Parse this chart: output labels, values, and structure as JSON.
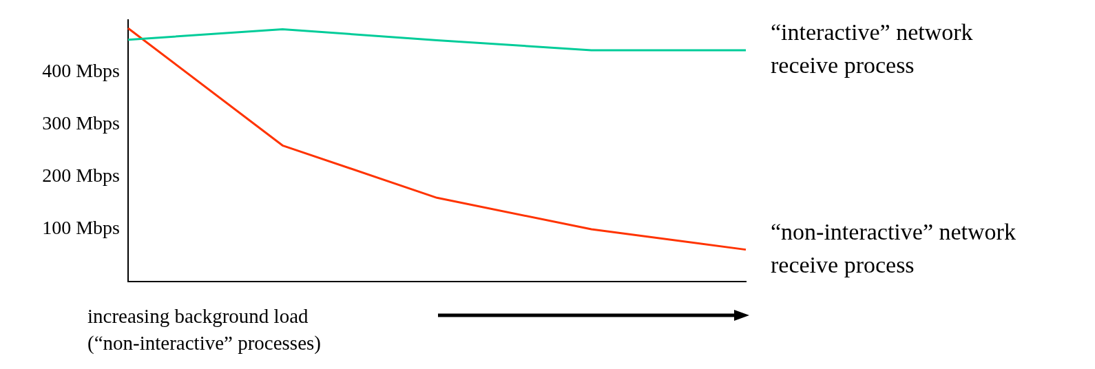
{
  "chart_data": {
    "type": "line",
    "xlabel": "increasing background load\n(“non-interactive” processes)",
    "categories": [
      null,
      null,
      null,
      null,
      null
    ],
    "series": [
      {
        "name": "“interactive” network receive process",
        "color": "#00cc99",
        "values": [
          462,
          482,
          461,
          442,
          442
        ]
      },
      {
        "name": "“non-interactive” network receive process",
        "color": "#ff3300",
        "values": [
          484,
          260,
          160,
          100,
          61
        ]
      }
    ],
    "ylim": [
      0,
      500
    ],
    "yticks": [
      {
        "value": 0,
        "label": null
      },
      {
        "value": 100,
        "label": "100 Mbps"
      },
      {
        "value": 200,
        "label": "200 Mbps"
      },
      {
        "value": 300,
        "label": "300 Mbps"
      },
      {
        "value": 400,
        "label": "400 Mbps"
      }
    ],
    "grid": false,
    "legend": false,
    "marker": "none",
    "line_style": "solid"
  }
}
